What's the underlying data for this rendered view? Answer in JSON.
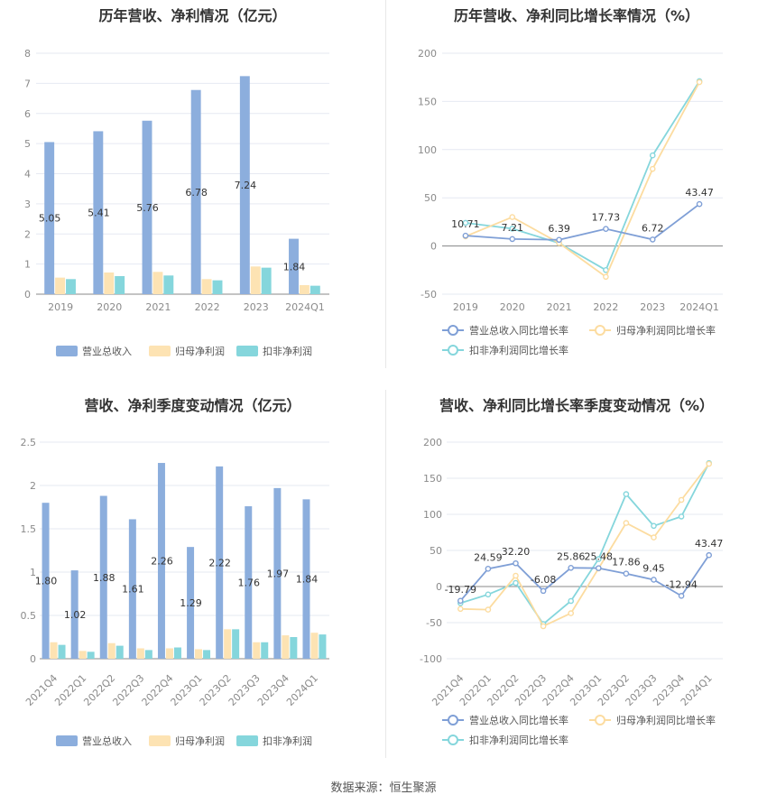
{
  "source_text": "数据来源：恒生聚源",
  "chart_data": [
    {
      "type": "bar",
      "title": "历年营收、净利情况（亿元）",
      "categories": [
        "2019",
        "2020",
        "2021",
        "2022",
        "2023",
        "2024Q1"
      ],
      "ylim": [
        0,
        8
      ],
      "yticks": [
        0,
        1,
        2,
        3,
        4,
        5,
        6,
        7,
        8
      ],
      "series": [
        {
          "name": "营业总收入",
          "color": "#8caedd",
          "values": [
            5.05,
            5.41,
            5.76,
            6.78,
            7.24,
            1.84
          ],
          "labels": [
            "5.05",
            "5.41",
            "5.76",
            "6.78",
            "7.24",
            "1.84"
          ]
        },
        {
          "name": "归母净利润",
          "color": "#fde3b3",
          "values": [
            0.55,
            0.72,
            0.74,
            0.5,
            0.92,
            0.3
          ]
        },
        {
          "name": "扣非净利润",
          "color": "#85d6dc",
          "values": [
            0.5,
            0.6,
            0.62,
            0.46,
            0.88,
            0.28
          ]
        }
      ],
      "grid": true,
      "legend": "bottom"
    },
    {
      "type": "line",
      "title": "历年营收、净利同比增长率情况（%）",
      "categories": [
        "2019",
        "2020",
        "2021",
        "2022",
        "2023",
        "2024Q1"
      ],
      "ylim": [
        -50,
        200
      ],
      "yticks": [
        -50,
        0,
        50,
        100,
        150,
        200
      ],
      "series": [
        {
          "name": "营业总收入同比增长率",
          "color": "#7f9fd6",
          "values": [
            10.71,
            7.21,
            6.39,
            17.73,
            6.72,
            43.47
          ],
          "labels": [
            "10.71",
            "7.21",
            "6.39",
            "17.73",
            "6.72",
            "43.47"
          ]
        },
        {
          "name": "归母净利润同比增长率",
          "color": "#fcdca0",
          "values": [
            10,
            30,
            3,
            -32,
            80,
            170
          ]
        },
        {
          "name": "扣非净利润同比增长率",
          "color": "#85d6dc",
          "values": [
            24,
            18,
            3,
            -25,
            94,
            171
          ]
        }
      ],
      "grid": true,
      "legend": "bottom"
    },
    {
      "type": "bar",
      "title": "营收、净利季度变动情况（亿元）",
      "categories": [
        "2021Q4",
        "2022Q1",
        "2022Q2",
        "2022Q3",
        "2022Q4",
        "2023Q1",
        "2023Q2",
        "2023Q3",
        "2023Q4",
        "2024Q1"
      ],
      "ylim": [
        0,
        2.5
      ],
      "yticks": [
        0,
        0.5,
        1,
        1.5,
        2,
        2.5
      ],
      "series": [
        {
          "name": "营业总收入",
          "color": "#8caedd",
          "values": [
            1.8,
            1.02,
            1.88,
            1.61,
            2.26,
            1.29,
            2.22,
            1.76,
            1.97,
            1.84
          ],
          "labels": [
            "1.80",
            "1.02",
            "1.88",
            "1.61",
            "2.26",
            "1.29",
            "2.22",
            "1.76",
            "1.97",
            "1.84"
          ]
        },
        {
          "name": "归母净利润",
          "color": "#fde3b3",
          "values": [
            0.19,
            0.09,
            0.18,
            0.12,
            0.12,
            0.11,
            0.34,
            0.19,
            0.27,
            0.3
          ]
        },
        {
          "name": "扣非净利润",
          "color": "#85d6dc",
          "values": [
            0.16,
            0.08,
            0.15,
            0.1,
            0.13,
            0.1,
            0.34,
            0.19,
            0.25,
            0.28
          ]
        }
      ],
      "grid": true,
      "legend": "bottom"
    },
    {
      "type": "line",
      "title": "营收、净利同比增长率季度变动情况（%）",
      "categories": [
        "2021Q4",
        "2022Q1",
        "2022Q2",
        "2022Q3",
        "2022Q4",
        "2023Q1",
        "2023Q2",
        "2023Q3",
        "2023Q4",
        "2024Q1"
      ],
      "ylim": [
        -100,
        200
      ],
      "yticks": [
        -100,
        -50,
        0,
        50,
        100,
        150,
        200
      ],
      "series": [
        {
          "name": "营业总收入同比增长率",
          "color": "#7f9fd6",
          "values": [
            -19.79,
            24.59,
            32.2,
            -6.08,
            25.86,
            25.48,
            17.86,
            9.45,
            -12.94,
            43.47
          ],
          "labels": [
            "-19.79",
            "24.59",
            "32.20",
            "-6.08",
            "25.86",
            "25.48",
            "17.86",
            "9.45",
            "-12.94",
            "43.47"
          ]
        },
        {
          "name": "归母净利润同比增长率",
          "color": "#fcdca0",
          "values": [
            -31,
            -32,
            15,
            -55,
            -37,
            25,
            88,
            68,
            120,
            170
          ]
        },
        {
          "name": "扣非净利润同比增长率",
          "color": "#85d6dc",
          "values": [
            -23,
            -11,
            5,
            -52,
            -20,
            38,
            128,
            84,
            97,
            171
          ]
        }
      ],
      "grid": true,
      "legend": "bottom"
    }
  ]
}
